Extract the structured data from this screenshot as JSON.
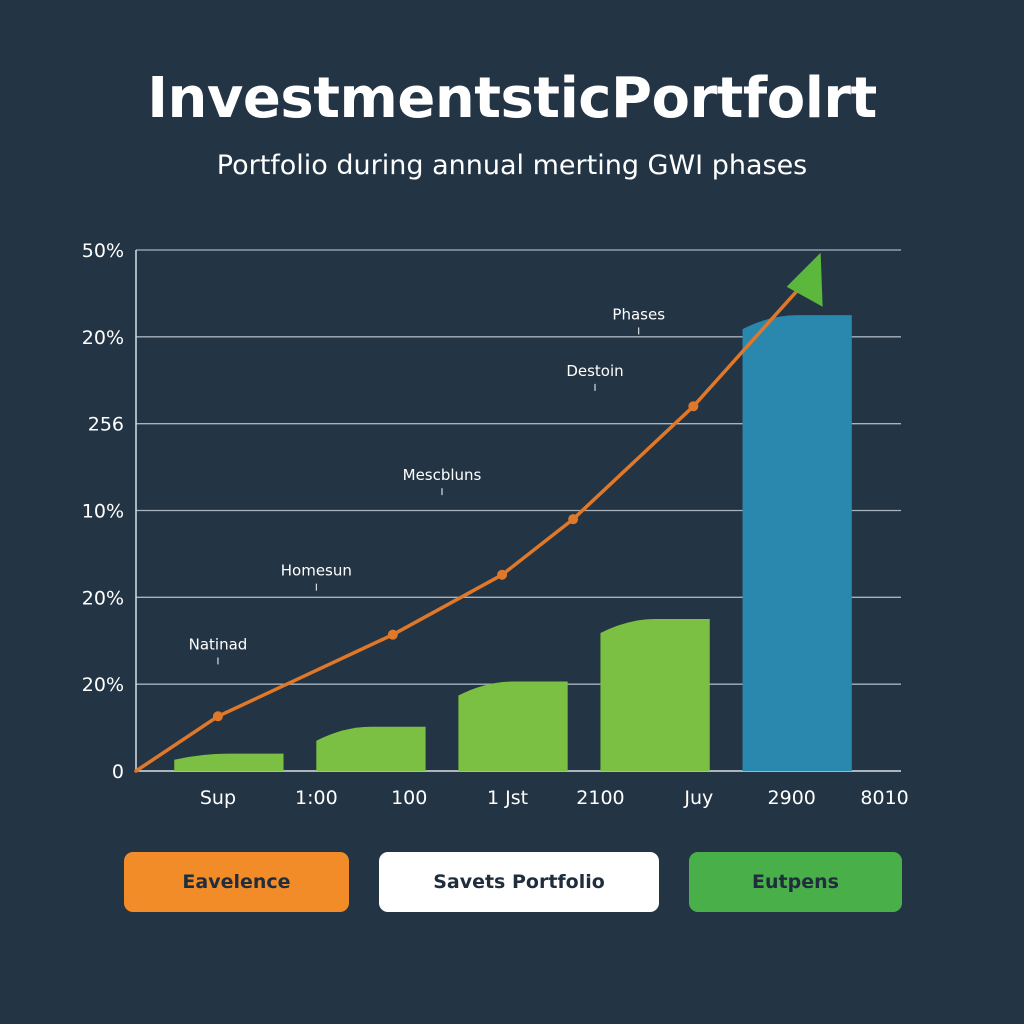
{
  "header": {
    "title": "InvestmentsticPortfolrt",
    "subtitle": "Portfolio during annual merting GWI phases"
  },
  "buttons": [
    {
      "label": "Eavelence",
      "color": "#f28c28"
    },
    {
      "label": "Savets Portfolio",
      "color": "#ffffff"
    },
    {
      "label": "Eutpens",
      "color": "#49b049"
    }
  ],
  "chart_data": {
    "type": "bar",
    "title": "InvestmentsticPortfolrt",
    "subtitle": "Portfolio during annual merting GWI phases",
    "xlabel": "",
    "ylabel": "",
    "grid": true,
    "y_tick_labels": [
      "0",
      "20%",
      "20%",
      "10%",
      "256",
      "20%",
      "50%"
    ],
    "ylim": [
      0,
      6
    ],
    "xlim": [
      0,
      7
    ],
    "x_tick_labels": [
      "Sup",
      "1:00",
      "100",
      "1 Jst",
      "2100",
      "Juy",
      "2900",
      "8010"
    ],
    "x_tick_positions": [
      0.75,
      1.65,
      2.5,
      3.4,
      4.25,
      5.15,
      6.0,
      6.85
    ],
    "bars": [
      {
        "x0": 0.35,
        "x1": 1.35,
        "value": 0.2,
        "color": "#7bc043"
      },
      {
        "x0": 1.65,
        "x1": 2.65,
        "value": 0.51,
        "color": "#7bc043"
      },
      {
        "x0": 2.95,
        "x1": 3.95,
        "value": 1.03,
        "color": "#7bc043"
      },
      {
        "x0": 4.25,
        "x1": 5.25,
        "value": 1.75,
        "color": "#7bc043"
      },
      {
        "x0": 5.55,
        "x1": 6.55,
        "value": 5.25,
        "color": "#2a87ad"
      }
    ],
    "line": {
      "color": "#e0782a",
      "points": [
        {
          "x": 0,
          "y": 0
        },
        {
          "x": 0.75,
          "y": 0.63
        },
        {
          "x": 2.35,
          "y": 1.57
        },
        {
          "x": 3.35,
          "y": 2.26
        },
        {
          "x": 4.0,
          "y": 2.9
        },
        {
          "x": 5.1,
          "y": 4.2
        },
        {
          "x": 6.1,
          "y": 5.6
        }
      ],
      "arrow_color": "#5cb83c"
    },
    "annotations": [
      {
        "text": "Natinad",
        "x": 0.75,
        "y": 1.4
      },
      {
        "text": "Homesun",
        "x": 1.65,
        "y": 2.25
      },
      {
        "text": "Mescbluns",
        "x": 2.8,
        "y": 3.35
      },
      {
        "text": "Destoin",
        "x": 4.2,
        "y": 4.55
      },
      {
        "text": "Phases",
        "x": 4.6,
        "y": 5.2
      }
    ]
  }
}
